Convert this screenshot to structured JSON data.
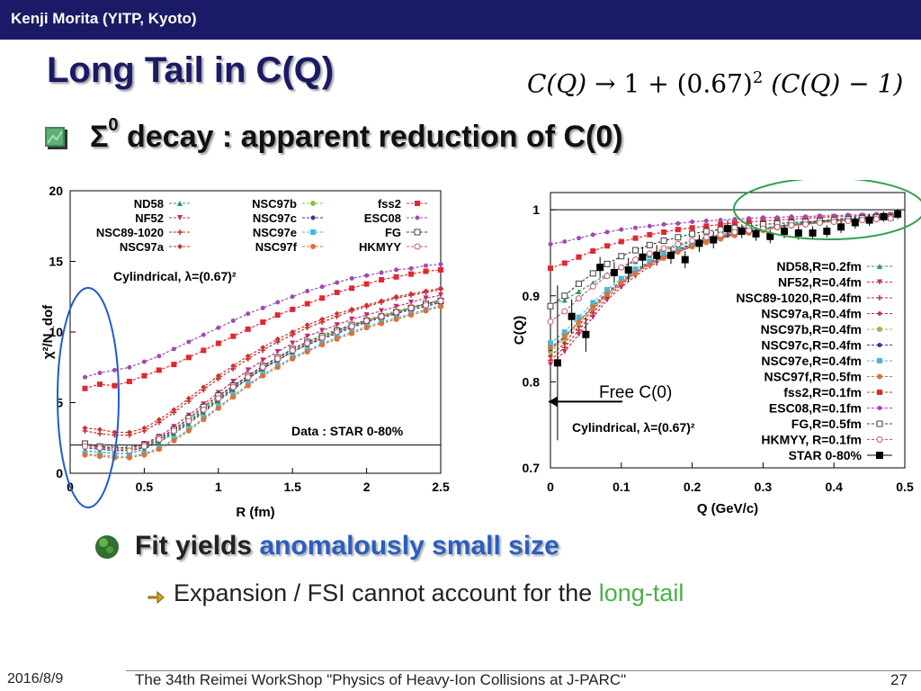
{
  "header": {
    "author": "Kenji Morita (YITP, Kyoto)"
  },
  "slide": {
    "title": "Long Tail in C(Q)",
    "formula": {
      "lhs": "C(Q)",
      "arrow": "→",
      "one": "1",
      "plus": "+",
      "factor": "(0.67)",
      "exp": "2",
      "rhs": "(C(Q) − 1)"
    },
    "bullet1": {
      "sigma": "Σ",
      "sup": "0",
      "text": " decay : apparent reduction of C(0)"
    },
    "bullet2": {
      "prefix": "Fit yields ",
      "highlight": "anomalously small size"
    },
    "bullet3": {
      "prefix": "Expansion / FSI cannot account for the ",
      "highlight": "long-tail"
    }
  },
  "footer": {
    "date": "2016/8/9",
    "event": "The 34th Reimei WorkShop \"Physics of Heavy-Ion Collisions at J-PARC\"",
    "page": "27"
  },
  "chart_data": [
    {
      "type": "line",
      "xlabel": "R (fm)",
      "ylabel": "χ²/N_dof",
      "xlim": [
        0,
        2.5
      ],
      "ylim": [
        0,
        20
      ],
      "xticks": [
        "0",
        "0.5",
        "1",
        "1.5",
        "2",
        "2.5"
      ],
      "yticks": [
        "0",
        "5",
        "10",
        "15",
        "20"
      ],
      "annotation_title": "Cylindrical, λ=(0.67)²",
      "annotation_data": "Data : STAR 0-80%",
      "reference_line": 2.0,
      "x": [
        0.1,
        0.2,
        0.3,
        0.4,
        0.5,
        0.6,
        0.7,
        0.8,
        0.9,
        1.0,
        1.1,
        1.2,
        1.3,
        1.4,
        1.5,
        1.6,
        1.7,
        1.8,
        1.9,
        2.0,
        2.1,
        2.2,
        2.3,
        2.4,
        2.5
      ],
      "series": [
        {
          "name": "ND58",
          "color": "#2e9a5e",
          "marker": "tri",
          "values": [
            1.6,
            1.5,
            1.4,
            1.4,
            1.7,
            2.2,
            2.8,
            3.5,
            4.3,
            5.1,
            5.9,
            6.7,
            7.4,
            8.0,
            8.6,
            9.1,
            9.6,
            10.0,
            10.4,
            10.8,
            11.1,
            11.4,
            11.7,
            12.0,
            12.3
          ]
        },
        {
          "name": "NF52",
          "color": "#c02c6e",
          "marker": "trid",
          "values": [
            2.0,
            1.9,
            1.8,
            1.8,
            2.1,
            2.6,
            3.3,
            4.1,
            4.9,
            5.7,
            6.5,
            7.3,
            8.0,
            8.6,
            9.2,
            9.7,
            10.1,
            10.5,
            10.9,
            11.2,
            11.5,
            11.8,
            12.1,
            12.4,
            12.6
          ]
        },
        {
          "name": "NSC89-1020",
          "color": "#c0302e",
          "marker": "plus",
          "values": [
            3.0,
            2.8,
            2.7,
            2.7,
            3.0,
            3.6,
            4.3,
            5.1,
            5.9,
            6.7,
            7.4,
            8.1,
            8.7,
            9.3,
            9.8,
            10.3,
            10.7,
            11.1,
            11.5,
            11.8,
            12.1,
            12.4,
            12.6,
            12.8,
            13.0
          ]
        },
        {
          "name": "NSC97a",
          "color": "#d03030",
          "marker": "dia",
          "values": [
            3.2,
            3.1,
            2.9,
            2.9,
            3.2,
            3.8,
            4.5,
            5.3,
            6.1,
            6.9,
            7.6,
            8.3,
            8.9,
            9.5,
            10.0,
            10.5,
            10.9,
            11.3,
            11.6,
            11.9,
            12.2,
            12.5,
            12.7,
            12.9,
            13.1
          ]
        },
        {
          "name": "NSC97b",
          "color": "#8fc04a",
          "marker": "circ",
          "values": [
            1.9,
            1.8,
            1.7,
            1.7,
            1.9,
            2.4,
            3.0,
            3.8,
            4.6,
            5.4,
            6.2,
            6.9,
            7.6,
            8.2,
            8.8,
            9.3,
            9.8,
            10.2,
            10.5,
            10.9,
            11.2,
            11.5,
            11.8,
            12.0,
            12.3
          ]
        },
        {
          "name": "NSC97c",
          "color": "#2a3a8a",
          "marker": "dot",
          "values": [
            1.8,
            1.7,
            1.6,
            1.6,
            1.8,
            2.3,
            2.9,
            3.6,
            4.4,
            5.2,
            6.0,
            6.7,
            7.4,
            8.0,
            8.6,
            9.1,
            9.5,
            9.9,
            10.3,
            10.7,
            11.0,
            11.3,
            11.6,
            11.8,
            12.1
          ]
        },
        {
          "name": "NSC97e",
          "color": "#4ab8d8",
          "marker": "sq",
          "values": [
            1.4,
            1.3,
            1.2,
            1.2,
            1.4,
            1.8,
            2.4,
            3.1,
            3.9,
            4.7,
            5.5,
            6.3,
            7.0,
            7.6,
            8.2,
            8.7,
            9.2,
            9.6,
            10.0,
            10.4,
            10.7,
            11.0,
            11.3,
            11.6,
            11.9
          ]
        },
        {
          "name": "NSC97f",
          "color": "#e07038",
          "marker": "circ",
          "values": [
            1.3,
            1.2,
            1.1,
            1.1,
            1.3,
            1.7,
            2.3,
            3.0,
            3.8,
            4.6,
            5.4,
            6.2,
            6.9,
            7.5,
            8.1,
            8.6,
            9.1,
            9.5,
            9.9,
            10.3,
            10.6,
            10.9,
            11.2,
            11.5,
            11.8
          ]
        },
        {
          "name": "fss2",
          "color": "#e02830",
          "marker": "sq",
          "values": [
            6.0,
            6.3,
            6.2,
            6.5,
            6.9,
            7.3,
            7.7,
            8.2,
            8.7,
            9.2,
            9.7,
            10.2,
            10.7,
            11.2,
            11.6,
            12.0,
            12.4,
            12.8,
            13.1,
            13.4,
            13.7,
            13.9,
            14.1,
            14.3,
            14.4
          ]
        },
        {
          "name": "ESC08",
          "color": "#a04ab0",
          "marker": "dot",
          "values": [
            6.8,
            7.1,
            7.3,
            7.5,
            7.9,
            8.3,
            8.8,
            9.3,
            9.8,
            10.3,
            10.8,
            11.3,
            11.7,
            12.1,
            12.5,
            12.9,
            13.2,
            13.5,
            13.8,
            14.0,
            14.2,
            14.4,
            14.5,
            14.7,
            14.8
          ]
        },
        {
          "name": "FG",
          "color": "#404040",
          "marker": "osq",
          "values": [
            2.1,
            1.9,
            1.8,
            1.8,
            2.0,
            2.5,
            3.1,
            3.9,
            4.7,
            5.5,
            6.2,
            6.9,
            7.6,
            8.2,
            8.8,
            9.3,
            9.7,
            10.1,
            10.5,
            10.8,
            11.1,
            11.4,
            11.7,
            12.0,
            12.2
          ]
        },
        {
          "name": "HKMYY",
          "color": "#c05a6a",
          "marker": "ocirc",
          "values": [
            1.9,
            1.8,
            1.7,
            1.6,
            1.9,
            2.4,
            3.0,
            3.7,
            4.5,
            5.3,
            6.1,
            6.8,
            7.5,
            8.1,
            8.7,
            9.2,
            9.6,
            10.0,
            10.4,
            10.8,
            11.1,
            11.4,
            11.7,
            11.9,
            12.2
          ]
        }
      ]
    },
    {
      "type": "line",
      "xlabel": "Q (GeV/c)",
      "ylabel": "C(Q)",
      "xlim": [
        0,
        0.5
      ],
      "ylim": [
        0.7,
        1.02
      ],
      "xticks": [
        "0",
        "0.1",
        "0.2",
        "0.3",
        "0.4",
        "0.5"
      ],
      "yticks": [
        "0.7",
        "0.8",
        "0.9",
        "1"
      ],
      "annotation_title": "Cylindrical, λ=(0.67)²",
      "annotation_free": "Free C(0)",
      "x": [
        0.0,
        0.02,
        0.04,
        0.06,
        0.08,
        0.1,
        0.12,
        0.14,
        0.16,
        0.18,
        0.2,
        0.22,
        0.24,
        0.26,
        0.28,
        0.3,
        0.32,
        0.34,
        0.36,
        0.38,
        0.4,
        0.42,
        0.44,
        0.46,
        0.48
      ],
      "series": [
        {
          "name": "ND58,R=0.2fm",
          "color": "#2e9a5e",
          "marker": "tri",
          "values": [
            0.89,
            0.895,
            0.905,
            0.915,
            0.925,
            0.933,
            0.94,
            0.947,
            0.953,
            0.958,
            0.963,
            0.967,
            0.971,
            0.974,
            0.977,
            0.979,
            0.981,
            0.983,
            0.985,
            0.987,
            0.989,
            0.99,
            0.991,
            0.992,
            0.993
          ]
        },
        {
          "name": "NF52,R=0.4fm",
          "color": "#c02c6e",
          "marker": "trid",
          "values": [
            0.82,
            0.835,
            0.855,
            0.875,
            0.895,
            0.91,
            0.923,
            0.934,
            0.943,
            0.951,
            0.957,
            0.963,
            0.967,
            0.971,
            0.974,
            0.977,
            0.98,
            0.982,
            0.984,
            0.986,
            0.988,
            0.989,
            0.99,
            0.991,
            0.992
          ]
        },
        {
          "name": "NSC89-1020,R=0.4fm",
          "color": "#c0302e",
          "marker": "plus",
          "values": [
            0.825,
            0.84,
            0.86,
            0.88,
            0.898,
            0.913,
            0.926,
            0.936,
            0.945,
            0.952,
            0.958,
            0.964,
            0.968,
            0.972,
            0.975,
            0.978,
            0.98,
            0.982,
            0.984,
            0.986,
            0.988,
            0.989,
            0.99,
            0.991,
            0.992
          ]
        },
        {
          "name": "NSC97a,R=0.4fm",
          "color": "#d03030",
          "marker": "dia",
          "values": [
            0.83,
            0.845,
            0.865,
            0.884,
            0.901,
            0.915,
            0.927,
            0.937,
            0.946,
            0.953,
            0.959,
            0.964,
            0.968,
            0.972,
            0.975,
            0.978,
            0.98,
            0.982,
            0.984,
            0.986,
            0.988,
            0.989,
            0.99,
            0.991,
            0.992
          ]
        },
        {
          "name": "NSC97b,R=0.4fm",
          "color": "#8fc04a",
          "marker": "circ",
          "values": [
            0.835,
            0.85,
            0.868,
            0.886,
            0.902,
            0.916,
            0.928,
            0.938,
            0.946,
            0.953,
            0.959,
            0.964,
            0.968,
            0.972,
            0.975,
            0.978,
            0.98,
            0.982,
            0.984,
            0.986,
            0.988,
            0.989,
            0.99,
            0.991,
            0.992
          ]
        },
        {
          "name": "NSC97c,R=0.4fm",
          "color": "#2a3a8a",
          "marker": "dot",
          "values": [
            0.838,
            0.852,
            0.87,
            0.888,
            0.904,
            0.917,
            0.929,
            0.939,
            0.947,
            0.954,
            0.96,
            0.965,
            0.969,
            0.972,
            0.975,
            0.978,
            0.98,
            0.982,
            0.984,
            0.986,
            0.988,
            0.989,
            0.99,
            0.991,
            0.992
          ]
        },
        {
          "name": "NSC97e,R=0.4fm",
          "color": "#4ab8d8",
          "marker": "sq",
          "values": [
            0.845,
            0.858,
            0.875,
            0.892,
            0.907,
            0.92,
            0.931,
            0.94,
            0.948,
            0.955,
            0.961,
            0.965,
            0.969,
            0.973,
            0.976,
            0.978,
            0.981,
            0.983,
            0.985,
            0.987,
            0.988,
            0.989,
            0.99,
            0.991,
            0.992
          ]
        },
        {
          "name": "NSC97f,R=0.5fm",
          "color": "#e07038",
          "marker": "circ",
          "values": [
            0.84,
            0.853,
            0.87,
            0.887,
            0.902,
            0.915,
            0.926,
            0.936,
            0.944,
            0.951,
            0.957,
            0.962,
            0.966,
            0.97,
            0.973,
            0.976,
            0.979,
            0.981,
            0.983,
            0.985,
            0.987,
            0.988,
            0.989,
            0.99,
            0.991
          ]
        },
        {
          "name": "fss2,R=0.1fm",
          "color": "#e02830",
          "marker": "sq",
          "values": [
            0.932,
            0.938,
            0.945,
            0.952,
            0.958,
            0.963,
            0.967,
            0.971,
            0.974,
            0.977,
            0.979,
            0.981,
            0.983,
            0.985,
            0.986,
            0.987,
            0.988,
            0.989,
            0.99,
            0.991,
            0.992,
            0.992,
            0.993,
            0.993,
            0.994
          ]
        },
        {
          "name": "ESC08,R=0.1fm",
          "color": "#a04ab0",
          "marker": "dot",
          "values": [
            0.96,
            0.963,
            0.967,
            0.971,
            0.974,
            0.977,
            0.979,
            0.981,
            0.983,
            0.984,
            0.986,
            0.987,
            0.988,
            0.989,
            0.99,
            0.991,
            0.991,
            0.992,
            0.992,
            0.993,
            0.993,
            0.994,
            0.994,
            0.995,
            0.995
          ]
        },
        {
          "name": "FG,R=0.5fm",
          "color": "#404040",
          "marker": "osq",
          "values": [
            0.888,
            0.9,
            0.914,
            0.926,
            0.937,
            0.946,
            0.953,
            0.959,
            0.964,
            0.968,
            0.972,
            0.975,
            0.977,
            0.979,
            0.981,
            0.983,
            0.984,
            0.985,
            0.986,
            0.987,
            0.988,
            0.989,
            0.99,
            0.991,
            0.991
          ]
        },
        {
          "name": "HKMYY, R=0.1fm",
          "color": "#c05a6a",
          "marker": "ocirc",
          "values": [
            0.87,
            0.882,
            0.897,
            0.911,
            0.923,
            0.933,
            0.942,
            0.949,
            0.955,
            0.96,
            0.964,
            0.968,
            0.971,
            0.974,
            0.976,
            0.978,
            0.98,
            0.982,
            0.983,
            0.985,
            0.986,
            0.987,
            0.988,
            0.989,
            0.99
          ]
        }
      ],
      "data_points": {
        "name": "STAR 0-80%",
        "x": [
          0.01,
          0.03,
          0.05,
          0.07,
          0.09,
          0.11,
          0.13,
          0.15,
          0.17,
          0.19,
          0.21,
          0.23,
          0.25,
          0.27,
          0.29,
          0.31,
          0.33,
          0.35,
          0.37,
          0.39,
          0.41,
          0.43,
          0.45,
          0.47,
          0.49
        ],
        "y": [
          0.822,
          0.876,
          0.855,
          0.933,
          0.927,
          0.93,
          0.945,
          0.947,
          0.947,
          0.942,
          0.961,
          0.965,
          0.978,
          0.975,
          0.972,
          0.969,
          0.975,
          0.973,
          0.973,
          0.975,
          0.98,
          0.985,
          0.988,
          0.992,
          0.995
        ],
        "err": [
          0.09,
          0.02,
          0.02,
          0.012,
          0.012,
          0.014,
          0.012,
          0.012,
          0.01,
          0.01,
          0.01,
          0.01,
          0.01,
          0.008,
          0.008,
          0.008,
          0.008,
          0.008,
          0.008,
          0.007,
          0.007,
          0.007,
          0.007,
          0.006,
          0.006
        ]
      }
    }
  ]
}
